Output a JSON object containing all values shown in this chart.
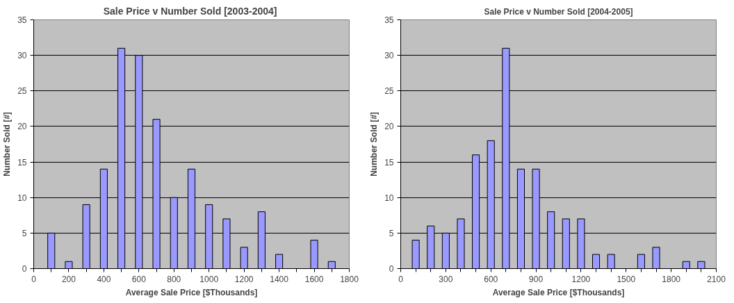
{
  "chart_data": [
    {
      "type": "bar",
      "title": "Sale Price v Number Sold  [2003-2004]",
      "xlabel": "Average Sale Price [$Thousands]",
      "ylabel": "Number Sold [#]",
      "x": [
        100,
        200,
        300,
        400,
        500,
        600,
        700,
        800,
        900,
        1000,
        1100,
        1200,
        1300,
        1400,
        1600,
        1700
      ],
      "series": [
        {
          "color": "#9999ff",
          "values": [
            5,
            1,
            9,
            14,
            31,
            30,
            21,
            10,
            14,
            9,
            7,
            3,
            8,
            2,
            4,
            1
          ]
        }
      ],
      "xlim": [
        0,
        1800
      ],
      "xticks": [
        0,
        {
          "value": 100,
          "label": null
        },
        200,
        {
          "value": 300,
          "label": null
        },
        400,
        {
          "value": 500,
          "label": null
        },
        600,
        {
          "value": 700,
          "label": null
        },
        800,
        {
          "value": 900,
          "label": null
        },
        1000,
        {
          "value": 1100,
          "label": null
        },
        1200,
        {
          "value": 1300,
          "label": null
        },
        1400,
        {
          "value": 1500,
          "label": null
        },
        1600,
        {
          "value": 1700,
          "label": null
        },
        1800
      ],
      "ylim": [
        0,
        35
      ],
      "yticks": [
        0,
        5,
        10,
        15,
        20,
        25,
        30,
        35
      ],
      "grid": "y"
    },
    {
      "type": "bar",
      "title": "Sale Price v Number Sold [2004-2005]",
      "xlabel": "Average Sale Price [$Thousands]",
      "ylabel": "Number Sold [#]",
      "x": [
        100,
        200,
        300,
        400,
        500,
        600,
        700,
        800,
        900,
        1000,
        1100,
        1200,
        1300,
        1400,
        1600,
        1700,
        1900,
        2000
      ],
      "series": [
        {
          "color": "#9999ff",
          "values": [
            4,
            6,
            5,
            7,
            16,
            18,
            31,
            14,
            14,
            8,
            7,
            7,
            2,
            2,
            2,
            3,
            1,
            1
          ]
        }
      ],
      "xlim": [
        0,
        2100
      ],
      "xticks": [
        0,
        {
          "value": 100,
          "label": null
        },
        {
          "value": 200,
          "label": null
        },
        300,
        {
          "value": 400,
          "label": null
        },
        {
          "value": 500,
          "label": null
        },
        600,
        {
          "value": 700,
          "label": null
        },
        {
          "value": 800,
          "label": null
        },
        900,
        {
          "value": 1000,
          "label": null
        },
        {
          "value": 1100,
          "label": null
        },
        1200,
        {
          "value": 1300,
          "label": null
        },
        {
          "value": 1400,
          "label": null
        },
        1500,
        {
          "value": 1600,
          "label": null
        },
        {
          "value": 1700,
          "label": null
        },
        1800,
        {
          "value": 1900,
          "label": null
        },
        {
          "value": 2000,
          "label": null
        },
        2100
      ],
      "ylim": [
        0,
        35
      ],
      "yticks": [
        0,
        5,
        10,
        15,
        20,
        25,
        30,
        35
      ],
      "grid": "y"
    }
  ]
}
